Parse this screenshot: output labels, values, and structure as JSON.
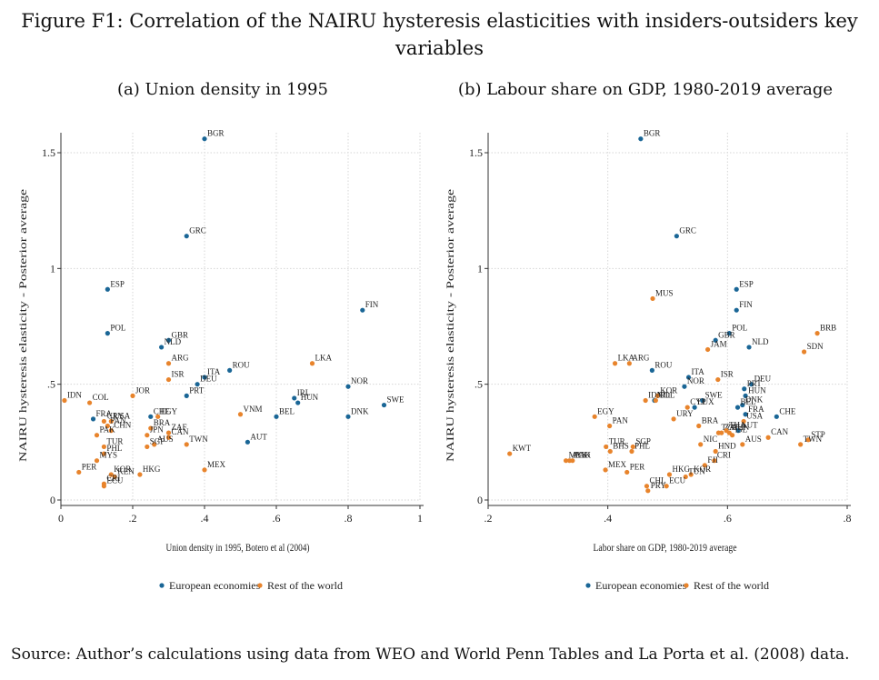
{
  "figure": {
    "title": "Figure F1: Correlation of the NAIRU hysteresis elasticities with insiders-outsiders key variables",
    "source": "Source: Author’s calculations using data from WEO and World Penn Tables and La Porta et al. (2008) data."
  },
  "colors": {
    "europe": "#1a6696",
    "rest": "#e8842c",
    "grid": "#d6d6d6"
  },
  "chart_data": [
    {
      "type": "scatter",
      "title": "(a) Union density in 1995",
      "xlabel": "Union density in 1995, Botero et al (2004)",
      "ylabel": "NAIRU hysteresis elasticity - Posterior average",
      "xlim": [
        0,
        1
      ],
      "ylim": [
        0,
        1.5
      ],
      "xticks": [
        0,
        0.2,
        0.4,
        0.6,
        0.8,
        1
      ],
      "xtick_labels": [
        "0",
        ".2",
        ".4",
        ".6",
        ".8",
        "1"
      ],
      "yticks": [
        0,
        0.5,
        1,
        1.5
      ],
      "ytick_labels": [
        "0",
        ".5",
        "1",
        "1.5"
      ],
      "grid": true,
      "legend": {
        "position": "bottom",
        "entries": [
          "European economies",
          "Rest of the world"
        ]
      },
      "series": [
        {
          "name": "European economies",
          "points": [
            {
              "label": "BGR",
              "x": 0.4,
              "y": 1.56
            },
            {
              "label": "GRC",
              "x": 0.35,
              "y": 1.14
            },
            {
              "label": "ESP",
              "x": 0.13,
              "y": 0.91
            },
            {
              "label": "FIN",
              "x": 0.84,
              "y": 0.82
            },
            {
              "label": "POL",
              "x": 0.13,
              "y": 0.72
            },
            {
              "label": "GBR",
              "x": 0.3,
              "y": 0.69
            },
            {
              "label": "NLD",
              "x": 0.28,
              "y": 0.66
            },
            {
              "label": "ROU",
              "x": 0.47,
              "y": 0.56
            },
            {
              "label": "ITA",
              "x": 0.4,
              "y": 0.53
            },
            {
              "label": "DEU",
              "x": 0.38,
              "y": 0.5
            },
            {
              "label": "PRT",
              "x": 0.35,
              "y": 0.45
            },
            {
              "label": "NOR",
              "x": 0.8,
              "y": 0.49
            },
            {
              "label": "SWE",
              "x": 0.9,
              "y": 0.41
            },
            {
              "label": "IRL",
              "x": 0.65,
              "y": 0.44
            },
            {
              "label": "HUN",
              "x": 0.66,
              "y": 0.42
            },
            {
              "label": "BEL",
              "x": 0.6,
              "y": 0.36
            },
            {
              "label": "DNK",
              "x": 0.8,
              "y": 0.36
            },
            {
              "label": "FRA",
              "x": 0.09,
              "y": 0.35
            },
            {
              "label": "CHE",
              "x": 0.25,
              "y": 0.36
            },
            {
              "label": "AUT",
              "x": 0.52,
              "y": 0.25
            }
          ]
        },
        {
          "name": "Rest of the world",
          "points": [
            {
              "label": "ARG",
              "x": 0.3,
              "y": 0.59
            },
            {
              "label": "LKA",
              "x": 0.7,
              "y": 0.59
            },
            {
              "label": "ISR",
              "x": 0.3,
              "y": 0.52
            },
            {
              "label": "JOR",
              "x": 0.2,
              "y": 0.45
            },
            {
              "label": "IDN",
              "x": 0.01,
              "y": 0.43
            },
            {
              "label": "COL",
              "x": 0.08,
              "y": 0.42
            },
            {
              "label": "EGY",
              "x": 0.27,
              "y": 0.36
            },
            {
              "label": "VNM",
              "x": 0.5,
              "y": 0.37
            },
            {
              "label": "URY",
              "x": 0.12,
              "y": 0.34
            },
            {
              "label": "USA",
              "x": 0.14,
              "y": 0.34
            },
            {
              "label": "PAN",
              "x": 0.13,
              "y": 0.32
            },
            {
              "label": "CHN",
              "x": 0.14,
              "y": 0.3
            },
            {
              "label": "BRA",
              "x": 0.25,
              "y": 0.31
            },
            {
              "label": "JPN",
              "x": 0.24,
              "y": 0.28
            },
            {
              "label": "ZAF",
              "x": 0.3,
              "y": 0.29
            },
            {
              "label": "CAN",
              "x": 0.3,
              "y": 0.27
            },
            {
              "label": "PAK",
              "x": 0.1,
              "y": 0.28
            },
            {
              "label": "AUS",
              "x": 0.26,
              "y": 0.24
            },
            {
              "label": "SGP",
              "x": 0.24,
              "y": 0.23
            },
            {
              "label": "TWN",
              "x": 0.35,
              "y": 0.24
            },
            {
              "label": "TUR",
              "x": 0.12,
              "y": 0.23
            },
            {
              "label": "PHL",
              "x": 0.12,
              "y": 0.2
            },
            {
              "label": "MYS",
              "x": 0.1,
              "y": 0.17
            },
            {
              "label": "PER",
              "x": 0.05,
              "y": 0.12
            },
            {
              "label": "MEX",
              "x": 0.4,
              "y": 0.13
            },
            {
              "label": "HKG",
              "x": 0.22,
              "y": 0.11
            },
            {
              "label": "KOR",
              "x": 0.14,
              "y": 0.11
            },
            {
              "label": "KEN",
              "x": 0.15,
              "y": 0.1
            },
            {
              "label": "CRI",
              "x": 0.12,
              "y": 0.07
            },
            {
              "label": "ECU",
              "x": 0.12,
              "y": 0.06
            }
          ]
        }
      ]
    },
    {
      "type": "scatter",
      "title": "(b) Labour share on GDP, 1980-2019 average",
      "xlabel": "Labor share on GDP, 1980-2019 average",
      "ylabel": "NAIRU hysteresis elasticity - Posterior average",
      "xlim": [
        0.2,
        0.8
      ],
      "ylim": [
        0,
        1.5
      ],
      "xticks": [
        0.2,
        0.4,
        0.6,
        0.8
      ],
      "xtick_labels": [
        ".2",
        ".4",
        ".6",
        ".8"
      ],
      "yticks": [
        0,
        0.5,
        1,
        1.5
      ],
      "ytick_labels": [
        "0",
        ".5",
        "1",
        "1.5"
      ],
      "grid": true,
      "legend": {
        "position": "bottom",
        "entries": [
          "European economies",
          "Rest of the world"
        ]
      },
      "series": [
        {
          "name": "European economies",
          "points": [
            {
              "label": "BGR",
              "x": 0.455,
              "y": 1.56
            },
            {
              "label": "GRC",
              "x": 0.515,
              "y": 1.14
            },
            {
              "label": "ESP",
              "x": 0.615,
              "y": 0.91
            },
            {
              "label": "FIN",
              "x": 0.615,
              "y": 0.82
            },
            {
              "label": "POL",
              "x": 0.603,
              "y": 0.72
            },
            {
              "label": "GBR",
              "x": 0.58,
              "y": 0.69
            },
            {
              "label": "NLD",
              "x": 0.636,
              "y": 0.66
            },
            {
              "label": "ROU",
              "x": 0.474,
              "y": 0.56
            },
            {
              "label": "ITA",
              "x": 0.535,
              "y": 0.53
            },
            {
              "label": "NOR",
              "x": 0.528,
              "y": 0.49
            },
            {
              "label": "DEU",
              "x": 0.64,
              "y": 0.5
            },
            {
              "label": "PRT",
              "x": 0.628,
              "y": 0.48
            },
            {
              "label": "HUN",
              "x": 0.63,
              "y": 0.45
            },
            {
              "label": "SWE",
              "x": 0.558,
              "y": 0.43
            },
            {
              "label": "IRL",
              "x": 0.478,
              "y": 0.43
            },
            {
              "label": "DNK",
              "x": 0.625,
              "y": 0.41
            },
            {
              "label": "BEL",
              "x": 0.617,
              "y": 0.4
            },
            {
              "label": "CHE",
              "x": 0.682,
              "y": 0.36
            },
            {
              "label": "FRA",
              "x": 0.63,
              "y": 0.37
            },
            {
              "label": "AUT",
              "x": 0.618,
              "y": 0.3
            },
            {
              "label": "LUX",
              "x": 0.545,
              "y": 0.4
            }
          ]
        },
        {
          "name": "Rest of the world",
          "points": [
            {
              "label": "BRB",
              "x": 0.75,
              "y": 0.72
            },
            {
              "label": "MUS",
              "x": 0.475,
              "y": 0.87
            },
            {
              "label": "SDN",
              "x": 0.728,
              "y": 0.64
            },
            {
              "label": "JAM",
              "x": 0.567,
              "y": 0.65
            },
            {
              "label": "ARG",
              "x": 0.436,
              "y": 0.59
            },
            {
              "label": "LKA",
              "x": 0.412,
              "y": 0.59
            },
            {
              "label": "ISR",
              "x": 0.584,
              "y": 0.52
            },
            {
              "label": "KOR",
              "x": 0.483,
              "y": 0.45
            },
            {
              "label": "COL",
              "x": 0.48,
              "y": 0.43
            },
            {
              "label": "IDN",
              "x": 0.463,
              "y": 0.43
            },
            {
              "label": "CYP",
              "x": 0.533,
              "y": 0.4
            },
            {
              "label": "URY",
              "x": 0.51,
              "y": 0.35
            },
            {
              "label": "USA",
              "x": 0.627,
              "y": 0.34
            },
            {
              "label": "EGY",
              "x": 0.378,
              "y": 0.36
            },
            {
              "label": "PAN",
              "x": 0.403,
              "y": 0.32
            },
            {
              "label": "BRA",
              "x": 0.552,
              "y": 0.32
            },
            {
              "label": "TZA",
              "x": 0.585,
              "y": 0.29
            },
            {
              "label": "ZAF",
              "x": 0.59,
              "y": 0.29
            },
            {
              "label": "THA",
              "x": 0.598,
              "y": 0.3
            },
            {
              "label": "CHN",
              "x": 0.603,
              "y": 0.29
            },
            {
              "label": "ISL",
              "x": 0.608,
              "y": 0.28
            },
            {
              "label": "CAN",
              "x": 0.668,
              "y": 0.27
            },
            {
              "label": "STP",
              "x": 0.735,
              "y": 0.26
            },
            {
              "label": "TWN",
              "x": 0.722,
              "y": 0.24
            },
            {
              "label": "NIC",
              "x": 0.555,
              "y": 0.24
            },
            {
              "label": "AUS",
              "x": 0.625,
              "y": 0.24
            },
            {
              "label": "HND",
              "x": 0.58,
              "y": 0.21
            },
            {
              "label": "CRI",
              "x": 0.578,
              "y": 0.17
            },
            {
              "label": "FJI",
              "x": 0.562,
              "y": 0.15
            },
            {
              "label": "KOR",
              "x": 0.539,
              "y": 0.11
            },
            {
              "label": "TUN",
              "x": 0.53,
              "y": 0.1
            },
            {
              "label": "HKG",
              "x": 0.503,
              "y": 0.11
            },
            {
              "label": "KWT",
              "x": 0.236,
              "y": 0.2
            },
            {
              "label": "TUR",
              "x": 0.397,
              "y": 0.23
            },
            {
              "label": "BHS",
              "x": 0.404,
              "y": 0.21
            },
            {
              "label": "SGP",
              "x": 0.442,
              "y": 0.23
            },
            {
              "label": "PHL",
              "x": 0.44,
              "y": 0.21
            },
            {
              "label": "MYS",
              "x": 0.33,
              "y": 0.17
            },
            {
              "label": "AGO",
              "x": 0.336,
              "y": 0.17
            },
            {
              "label": "PAK",
              "x": 0.341,
              "y": 0.17
            },
            {
              "label": "MEX",
              "x": 0.396,
              "y": 0.13
            },
            {
              "label": "PER",
              "x": 0.432,
              "y": 0.12
            },
            {
              "label": "CHL",
              "x": 0.465,
              "y": 0.06
            },
            {
              "label": "PRY",
              "x": 0.467,
              "y": 0.04
            },
            {
              "label": "ECU",
              "x": 0.498,
              "y": 0.06
            }
          ]
        }
      ]
    }
  ]
}
